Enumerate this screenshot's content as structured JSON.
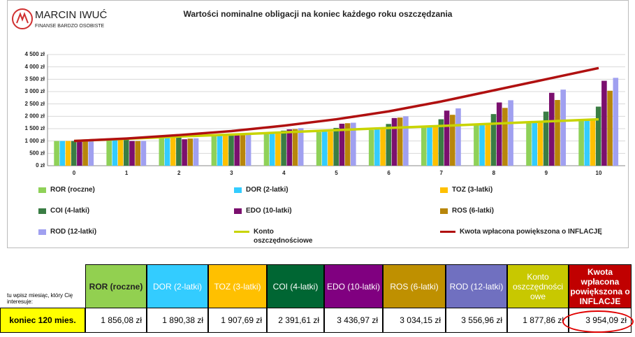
{
  "logo": {
    "name": "MARCIN IWUĆ",
    "tagline": "FINANSE BARDZO OSOBISTE"
  },
  "chart_data": {
    "type": "bar",
    "title": "Wartości nominalne obligacji na koniec każdego roku oszczędzania",
    "x": [
      0,
      1,
      2,
      3,
      4,
      5,
      6,
      7,
      8,
      9,
      10
    ],
    "ylim": [
      0,
      4500
    ],
    "yticks": [
      {
        "value": 0,
        "label": "0 zł"
      },
      {
        "value": 500,
        "label": "500 zł"
      },
      {
        "value": 1000,
        "label": "1 000 zł"
      },
      {
        "value": 1500,
        "label": "1 500 zł"
      },
      {
        "value": 2000,
        "label": "2 000 zł"
      },
      {
        "value": 2500,
        "label": "2 500 zł"
      },
      {
        "value": 3000,
        "label": "3 000 zł"
      },
      {
        "value": 3500,
        "label": "3 500 zł"
      },
      {
        "value": 4000,
        "label": "4 000 zł"
      },
      {
        "value": 4500,
        "label": "4 500 zł"
      }
    ],
    "grid": true,
    "series": [
      {
        "name": "ROR (roczne)",
        "color": "#8fd158",
        "values": [
          1000,
          1060,
          1130,
          1200,
          1280,
          1360,
          1450,
          1540,
          1640,
          1740,
          1856.08
        ]
      },
      {
        "name": "DOR (2-latki)",
        "color": "#33ccff",
        "values": [
          1000,
          1070,
          1140,
          1210,
          1290,
          1380,
          1470,
          1570,
          1670,
          1780,
          1890.38
        ]
      },
      {
        "name": "TOZ (3-latki)",
        "color": "#ffc000",
        "values": [
          1000,
          1070,
          1140,
          1210,
          1300,
          1380,
          1470,
          1570,
          1680,
          1790,
          1907.69
        ]
      },
      {
        "name": "COI (4-latki)",
        "color": "#3a7d44",
        "values": [
          1000,
          1090,
          1190,
          1300,
          1420,
          1530,
          1690,
          1880,
          2090,
          2190,
          2391.61
        ]
      },
      {
        "name": "EDO (10-latki)",
        "color": "#7b0f6e",
        "values": [
          1000,
          1000,
          1070,
          1280,
          1470,
          1700,
          1930,
          2230,
          2560,
          2950,
          3436.97
        ]
      },
      {
        "name": "ROS (6-latki)",
        "color": "#b8860b",
        "values": [
          1000,
          1000,
          1100,
          1300,
          1480,
          1720,
          1950,
          2060,
          2340,
          2660,
          3034.15
        ]
      },
      {
        "name": "ROD (12-latki)",
        "color": "#a0a0f0",
        "values": [
          1000,
          1000,
          1110,
          1320,
          1520,
          1740,
          2000,
          2320,
          2650,
          3080,
          3556.96
        ]
      },
      {
        "name": "Konto oszczędnościowe",
        "color": "#c8d400",
        "type": "line",
        "values": [
          1000,
          1090,
          1180,
          1260,
          1350,
          1440,
          1530,
          1610,
          1700,
          1790,
          1877.86
        ]
      },
      {
        "name": "Kwota wpłacona powiększona o INFLACJĘ",
        "color": "#b01010",
        "type": "line",
        "values": [
          1000,
          1100,
          1240,
          1400,
          1620,
          1880,
          2200,
          2600,
          3050,
          3500,
          3954.09
        ]
      }
    ]
  },
  "table": {
    "note": "tu wpisz miesiąc, który Cię interesuje:",
    "headers": [
      "ROR (roczne)",
      "DOR (2-latki)",
      "TOZ (3-latki)",
      "COI (4-latki)",
      "EDO (10-latki)",
      "ROS (6-latki)",
      "ROD (12-latki)",
      "Konto oszczędności owe",
      "Kwota wpłacona powiększona o INFLACJE"
    ],
    "row_label": "koniec 120 mies.",
    "row": [
      "1 856,08 zł",
      "1 890,38 zł",
      "1 907,69 zł",
      "2 391,61 zł",
      "3 436,97 zł",
      "3 034,15 zł",
      "3 556,96 zł",
      "1 877,86 zł",
      "3 954,09 zł"
    ]
  }
}
